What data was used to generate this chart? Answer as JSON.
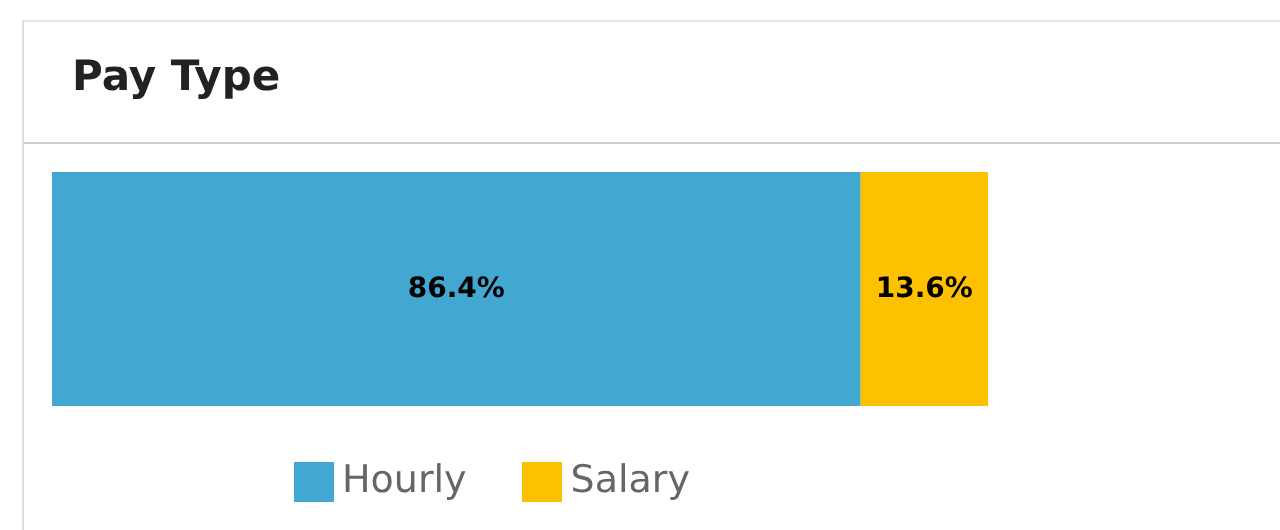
{
  "chart_data": {
    "type": "bar",
    "title": "Pay Type",
    "orientation": "horizontal",
    "stacked": true,
    "categories": [
      null
    ],
    "series": [
      {
        "name": "Hourly",
        "color": "#42a8d2",
        "values": [
          86.4
        ],
        "value_labels": [
          "86.4%"
        ]
      },
      {
        "name": "Salary",
        "color": "#fdc100",
        "values": [
          13.6
        ],
        "value_labels": [
          "13.6%"
        ]
      }
    ],
    "legend": "bottom"
  }
}
